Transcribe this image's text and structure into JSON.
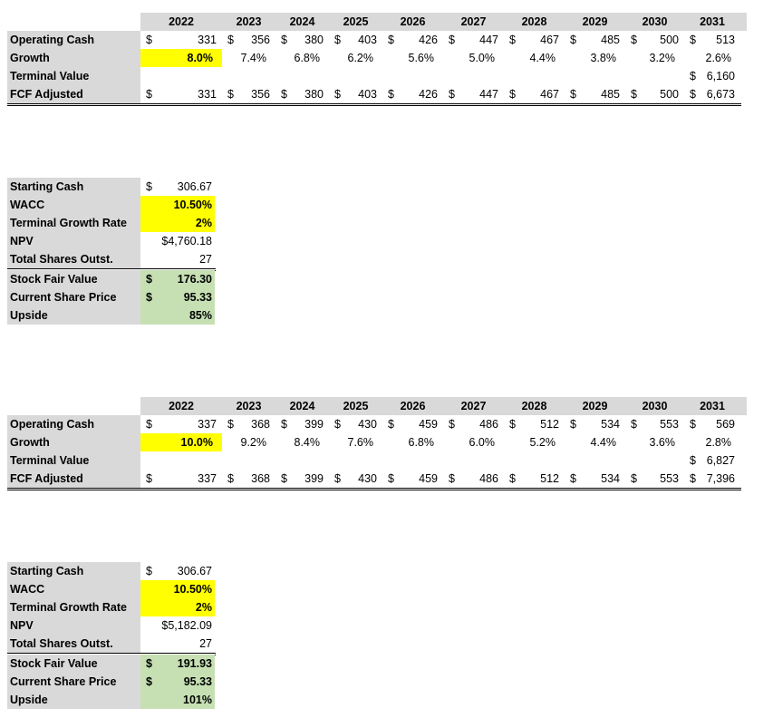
{
  "currency": "$",
  "scenarios": [
    {
      "projection": {
        "years": [
          "2022",
          "2023",
          "2024",
          "2025",
          "2026",
          "2027",
          "2028",
          "2029",
          "2030",
          "2031"
        ],
        "operating_cash": {
          "label": "Operating Cash",
          "values": [
            "331",
            "356",
            "380",
            "403",
            "426",
            "447",
            "467",
            "485",
            "500",
            "513"
          ]
        },
        "growth": {
          "label": "Growth",
          "values": [
            "8.0%",
            "7.4%",
            "6.8%",
            "6.2%",
            "5.6%",
            "5.0%",
            "4.4%",
            "3.8%",
            "3.2%",
            "2.6%"
          ]
        },
        "terminal_value": {
          "label": "Terminal Value",
          "value": "6,160"
        },
        "fcf_adjusted": {
          "label": "FCF Adjusted",
          "values": [
            "331",
            "356",
            "380",
            "403",
            "426",
            "447",
            "467",
            "485",
            "500",
            "6,673"
          ]
        }
      },
      "summary": {
        "starting_cash": {
          "label": "Starting Cash",
          "value": "306.67"
        },
        "wacc": {
          "label": "WACC",
          "value": "10.50%"
        },
        "terminal_growth_rate": {
          "label": "Terminal Growth Rate",
          "value": "2%"
        },
        "npv": {
          "label": "NPV",
          "value": "$4,760.18"
        },
        "total_shares": {
          "label": "Total Shares Outst.",
          "value": "27"
        },
        "stock_fair_value": {
          "label": "Stock Fair Value",
          "value": "176.30"
        },
        "current_share_price": {
          "label": "Current Share Price",
          "value": "95.33"
        },
        "upside": {
          "label": "Upside",
          "value": "85%"
        }
      }
    },
    {
      "projection": {
        "years": [
          "2022",
          "2023",
          "2024",
          "2025",
          "2026",
          "2027",
          "2028",
          "2029",
          "2030",
          "2031"
        ],
        "operating_cash": {
          "label": "Operating Cash",
          "values": [
            "337",
            "368",
            "399",
            "430",
            "459",
            "486",
            "512",
            "534",
            "553",
            "569"
          ]
        },
        "growth": {
          "label": "Growth",
          "values": [
            "10.0%",
            "9.2%",
            "8.4%",
            "7.6%",
            "6.8%",
            "6.0%",
            "5.2%",
            "4.4%",
            "3.6%",
            "2.8%"
          ]
        },
        "terminal_value": {
          "label": "Terminal Value",
          "value": "6,827"
        },
        "fcf_adjusted": {
          "label": "FCF Adjusted",
          "values": [
            "337",
            "368",
            "399",
            "430",
            "459",
            "486",
            "512",
            "534",
            "553",
            "7,396"
          ]
        }
      },
      "summary": {
        "starting_cash": {
          "label": "Starting Cash",
          "value": "306.67"
        },
        "wacc": {
          "label": "WACC",
          "value": "10.50%"
        },
        "terminal_growth_rate": {
          "label": "Terminal Growth Rate",
          "value": "2%"
        },
        "npv": {
          "label": "NPV",
          "value": "$5,182.09"
        },
        "total_shares": {
          "label": "Total Shares Outst.",
          "value": "27"
        },
        "stock_fair_value": {
          "label": "Stock Fair Value",
          "value": "191.93"
        },
        "current_share_price": {
          "label": "Current Share Price",
          "value": "95.33"
        },
        "upside": {
          "label": "Upside",
          "value": "101%"
        }
      }
    }
  ],
  "colors": {
    "header_gray": "#d9d9d9",
    "input_yellow": "#ffff00",
    "result_green": "#c6e0b4"
  }
}
